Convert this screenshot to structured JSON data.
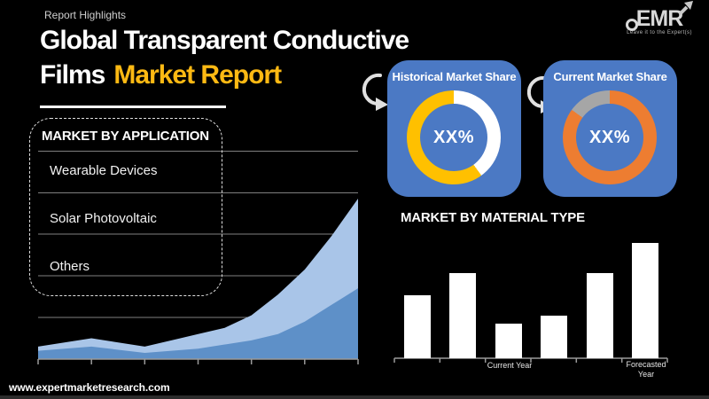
{
  "header": {
    "eyebrow": "Report Highlights",
    "title_line1": "Global Transparent Conductive",
    "title_line2_white": "Films",
    "title_line2_accent": "Market Report",
    "accent_color": "#fdb913"
  },
  "logo": {
    "name": "EMR",
    "tagline": "Leave it to the Expert(s)"
  },
  "application_panel": {
    "title": "MARKET BY APPLICATION",
    "items": [
      {
        "label": "Wearable Devices"
      },
      {
        "label": "Solar Photovoltaic"
      },
      {
        "label": "Others"
      }
    ]
  },
  "share_cards": [
    {
      "title": "Historical Market Share",
      "center_label": "XX%",
      "card_color": "#4b79c4",
      "segments": [
        {
          "name": "unshaded-share",
          "color": "#ffffff",
          "pct": 40
        },
        {
          "name": "historical-share",
          "color": "#ffc000",
          "pct": 60
        }
      ]
    },
    {
      "title": "Current Market Share",
      "center_label": "XX%",
      "card_color": "#4b79c4",
      "segments": [
        {
          "name": "current-share",
          "color": "#ed7d31",
          "pct": 85
        },
        {
          "name": "remainder-share",
          "color": "#a6a6a6",
          "pct": 15
        }
      ]
    }
  ],
  "material_section": {
    "title": "MARKET BY MATERIAL TYPE",
    "xlabels": [
      "Current Year",
      "Forecasted Year"
    ]
  },
  "footer": {
    "website": "www.expertmarketresearch.com"
  },
  "chart_data": [
    {
      "type": "area",
      "title": "Market by Application growth trend (unlabeled axes)",
      "x": [
        0,
        1,
        2,
        3,
        3.5,
        4,
        4.5,
        5,
        5.5,
        6
      ],
      "x_tick_count": 7,
      "series": [
        {
          "name": "upper-area",
          "color": "#a9c5e8",
          "values": [
            6,
            10,
            6,
            12,
            15,
            21,
            31,
            43,
            59,
            77
          ]
        },
        {
          "name": "lower-area",
          "color": "#5e90c8",
          "values": [
            4,
            6,
            3,
            5,
            7,
            9,
            12,
            18,
            26,
            34
          ]
        }
      ],
      "ylim": [
        0,
        100
      ],
      "grid": true,
      "units": "relative (no numeric labels shown)"
    },
    {
      "type": "pie",
      "title": "Historical Market Share",
      "labels": [
        "unshaded",
        "historical share"
      ],
      "values": [
        40,
        60
      ],
      "colors": [
        "#ffffff",
        "#ffc000"
      ],
      "center_label": "XX%",
      "donut": true
    },
    {
      "type": "pie",
      "title": "Current Market Share",
      "labels": [
        "current share",
        "remainder"
      ],
      "values": [
        85,
        15
      ],
      "colors": [
        "#ed7d31",
        "#a6a6a6"
      ],
      "center_label": "XX%",
      "donut": true
    },
    {
      "type": "bar",
      "title": "Market by Material Type (unlabeled y-axis)",
      "categories": [
        "",
        "",
        "Current Year",
        "",
        "",
        "Forecasted Year"
      ],
      "values": [
        55,
        74,
        30,
        37,
        74,
        100
      ],
      "bar_color": "#ffffff",
      "ylim": [
        0,
        100
      ],
      "units": "relative (no numeric labels shown)"
    }
  ]
}
